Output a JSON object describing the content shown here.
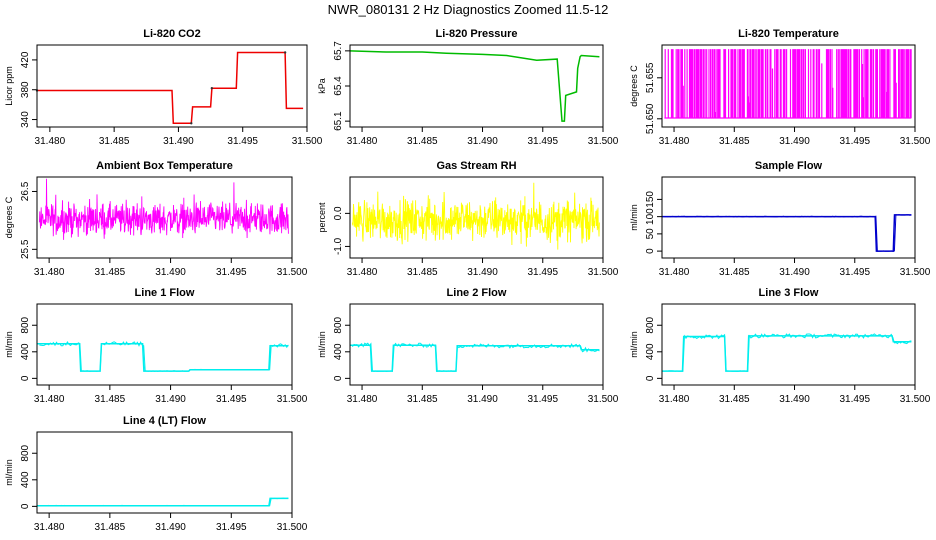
{
  "figure_title": "NWR_080131  2 Hz Diagnostics Zoomed 11.5-12",
  "chart_data": [
    {
      "type": "line",
      "title": "Li-820 CO2",
      "ylabel": "Licor ppm",
      "color": "#ee0000",
      "xlim": [
        31.479,
        31.5
      ],
      "ylim": [
        330,
        440
      ],
      "xticks": [
        "31.480",
        "31.485",
        "31.490",
        "31.495",
        "31.500"
      ],
      "yticks": [
        "340",
        "380",
        "420"
      ],
      "series": [
        {
          "name": "CO2",
          "x": [
            31.479,
            31.4895,
            31.4896,
            31.491,
            31.4911,
            31.4925,
            31.4926,
            31.4945,
            31.4946,
            31.4983,
            31.4984,
            31.4997
          ],
          "values": [
            379,
            379,
            335,
            335,
            357,
            357,
            382,
            382,
            430,
            430,
            355,
            355
          ]
        }
      ]
    },
    {
      "type": "line",
      "title": "Li-820 Pressure",
      "ylabel": "kPa",
      "color": "#00bb00",
      "xlim": [
        31.479,
        31.5
      ],
      "ylim": [
        65.05,
        65.75
      ],
      "xticks": [
        "31.480",
        "31.485",
        "31.490",
        "31.495",
        "31.500"
      ],
      "yticks": [
        "65.1",
        "65.4",
        "65.7"
      ],
      "series": [
        {
          "name": "Pressure",
          "x": [
            31.479,
            31.482,
            31.485,
            31.487,
            31.49,
            31.492,
            31.4945,
            31.4962,
            31.4966,
            31.4968,
            31.4969,
            31.4978,
            31.4979,
            31.4981,
            31.4982,
            31.4997
          ],
          "values": [
            65.7,
            65.69,
            65.69,
            65.68,
            65.67,
            65.66,
            65.62,
            65.63,
            65.1,
            65.1,
            65.32,
            65.35,
            65.55,
            65.65,
            65.66,
            65.65
          ]
        }
      ]
    },
    {
      "type": "line",
      "title": "Li-820 Temperature",
      "ylabel": "degrees C",
      "color": "#ff00ff",
      "xlim": [
        31.479,
        31.5
      ],
      "ylim": [
        51.649,
        51.659
      ],
      "xticks": [
        "31.480",
        "31.485",
        "31.490",
        "31.495",
        "31.500"
      ],
      "yticks": [
        "51.650",
        "51.655"
      ],
      "series": [
        {
          "name": "Temperature",
          "values": [
            51.6501,
            51.6585
          ]
        }
      ]
    },
    {
      "type": "line",
      "title": "Ambient Box Temperature",
      "ylabel": "degrees C",
      "color": "#ff00ff",
      "xlim": [
        31.479,
        31.5
      ],
      "ylim": [
        25.35,
        26.75
      ],
      "xticks": [
        "31.480",
        "31.485",
        "31.490",
        "31.495",
        "31.500"
      ],
      "yticks": [
        "25.5",
        "26.5"
      ],
      "series": [
        {
          "name": "Box temperature",
          "values": [
            26.02,
            26.42
          ]
        }
      ]
    },
    {
      "type": "line",
      "title": "Gas Stream RH",
      "ylabel": "percent",
      "color": "#ffff00",
      "xlim": [
        31.479,
        31.5
      ],
      "ylim": [
        -1.35,
        1.1
      ],
      "xticks": [
        "31.480",
        "31.485",
        "31.490",
        "31.495",
        "31.500"
      ],
      "yticks": [
        "-1.0",
        "0.0"
      ],
      "series": [
        {
          "name": "RH",
          "values": [
            -0.2,
            0.7
          ]
        }
      ]
    },
    {
      "type": "line",
      "title": "Sample Flow",
      "ylabel": "ml/min",
      "color": "#0000cc",
      "xlim": [
        31.479,
        31.5
      ],
      "ylim": [
        -20,
        215
      ],
      "xticks": [
        "31.480",
        "31.485",
        "31.490",
        "31.495",
        "31.500"
      ],
      "yticks": [
        "0",
        "50",
        "100",
        "150"
      ],
      "series": [
        {
          "name": "Sample Flow",
          "x": [
            31.479,
            31.4967,
            31.4968,
            31.4982,
            31.4983,
            31.4997
          ],
          "values": [
            100,
            100,
            0,
            0,
            105,
            105
          ]
        }
      ]
    },
    {
      "type": "line",
      "title": "Line 1 Flow",
      "ylabel": "ml/min",
      "color": "#00eeee",
      "xlim": [
        31.479,
        31.5
      ],
      "ylim": [
        -100,
        1120
      ],
      "xticks": [
        "31.480",
        "31.485",
        "31.490",
        "31.495",
        "31.500"
      ],
      "yticks": [
        "0",
        "400",
        "800"
      ],
      "series": [
        {
          "name": "Line 1",
          "x": [
            31.479,
            31.4825,
            31.4826,
            31.4842,
            31.4843,
            31.4877,
            31.4878,
            31.4915,
            31.4916,
            31.4981,
            31.4982,
            31.4997
          ],
          "values": [
            520,
            520,
            110,
            110,
            520,
            520,
            110,
            110,
            130,
            130,
            490,
            490
          ]
        }
      ]
    },
    {
      "type": "line",
      "title": "Line 2 Flow",
      "ylabel": "ml/min",
      "color": "#00eeee",
      "xlim": [
        31.479,
        31.5
      ],
      "ylim": [
        -100,
        1120
      ],
      "xticks": [
        "31.480",
        "31.485",
        "31.490",
        "31.495",
        "31.500"
      ],
      "yticks": [
        "0",
        "400",
        "800"
      ],
      "series": [
        {
          "name": "Line 2",
          "x": [
            31.479,
            31.4807,
            31.4808,
            31.4825,
            31.4826,
            31.4861,
            31.4862,
            31.4878,
            31.4879,
            31.4981,
            31.4982,
            31.4997
          ],
          "values": [
            500,
            500,
            110,
            110,
            500,
            500,
            110,
            110,
            490,
            490,
            430,
            430
          ]
        }
      ]
    },
    {
      "type": "line",
      "title": "Line 3 Flow",
      "ylabel": "ml/min",
      "color": "#00eeee",
      "xlim": [
        31.479,
        31.5
      ],
      "ylim": [
        -100,
        1120
      ],
      "xticks": [
        "31.480",
        "31.485",
        "31.490",
        "31.495",
        "31.500"
      ],
      "yticks": [
        "0",
        "400",
        "800"
      ],
      "series": [
        {
          "name": "Line 3",
          "x": [
            31.479,
            31.4807,
            31.4808,
            31.4842,
            31.4843,
            31.4861,
            31.4862,
            31.4981,
            31.4982,
            31.4997
          ],
          "values": [
            110,
            110,
            630,
            630,
            110,
            110,
            640,
            640,
            550,
            550
          ]
        }
      ]
    },
    {
      "type": "line",
      "title": "Line 4 (LT) Flow",
      "ylabel": "ml/min",
      "color": "#00eeee",
      "xlim": [
        31.479,
        31.5
      ],
      "ylim": [
        -100,
        1120
      ],
      "xticks": [
        "31.480",
        "31.485",
        "31.490",
        "31.495",
        "31.500"
      ],
      "yticks": [
        "0",
        "400",
        "800"
      ],
      "series": [
        {
          "name": "Line 4",
          "x": [
            31.479,
            31.4981,
            31.4982,
            31.4997
          ],
          "values": [
            10,
            10,
            120,
            120
          ]
        }
      ]
    }
  ]
}
